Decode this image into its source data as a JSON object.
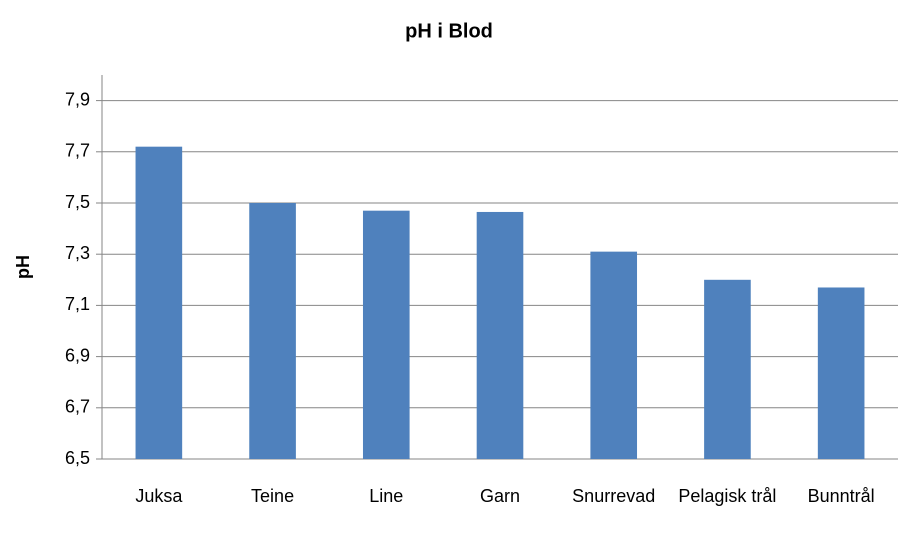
{
  "chart_data": {
    "type": "bar",
    "title": "pH i Blod",
    "ylabel": "pH",
    "categories": [
      "Juksa",
      "Teine",
      "Line",
      "Garn",
      "Snurrevad",
      "Pelagisk trål",
      "Bunntrål"
    ],
    "values": [
      7.72,
      7.5,
      7.47,
      7.465,
      7.31,
      7.2,
      7.17
    ],
    "color": "#4f81bd",
    "ylim": [
      6.5,
      8.0
    ],
    "yticks": [
      {
        "value": 6.5,
        "label": "6,5"
      },
      {
        "value": 6.7,
        "label": "6,7"
      },
      {
        "value": 6.9,
        "label": "6,9"
      },
      {
        "value": 7.1,
        "label": "7,1"
      },
      {
        "value": 7.3,
        "label": "7,3"
      },
      {
        "value": 7.5,
        "label": "7,5"
      },
      {
        "value": 7.7,
        "label": "7,7"
      },
      {
        "value": 7.9,
        "label": "7,9"
      }
    ],
    "grid": true
  }
}
